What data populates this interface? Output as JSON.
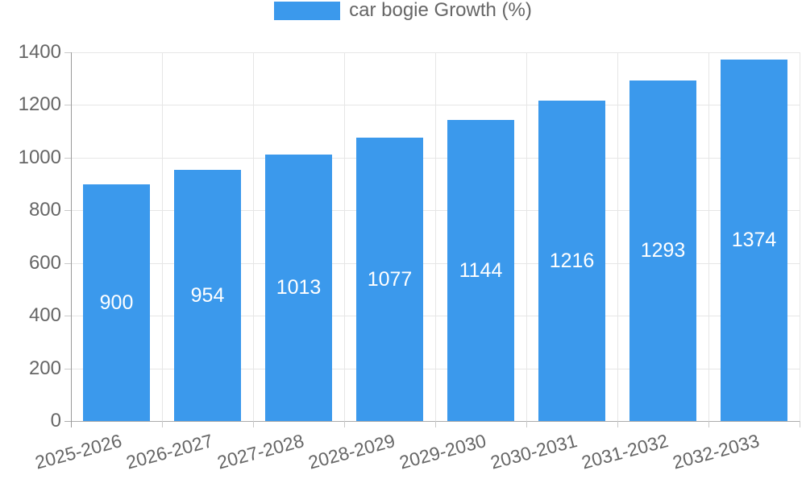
{
  "chart_data": {
    "type": "bar",
    "title": "",
    "legend": {
      "label": "car bogie Growth (%)",
      "position": "top"
    },
    "categories": [
      "2025-2026",
      "2026-2027",
      "2027-2028",
      "2028-2029",
      "2029-2030",
      "2030-2031",
      "2031-2032",
      "2032-2033"
    ],
    "series": [
      {
        "name": "car bogie Growth (%)",
        "values": [
          900,
          954,
          1013,
          1077,
          1144,
          1216,
          1293,
          1374
        ]
      }
    ],
    "bar_value_labels": [
      "900",
      "954",
      "1013",
      "1077",
      "1144",
      "1216",
      "1293",
      "1374"
    ],
    "xlabel": "",
    "ylabel": "",
    "ylim": [
      0,
      1400
    ],
    "y_ticks": [
      "0",
      "200",
      "400",
      "600",
      "800",
      "1000",
      "1200",
      "1400"
    ],
    "grid": "on",
    "x_label_rotation_deg": -15,
    "colors": {
      "bar_fill": "#3B99EC",
      "grid_line": "#E6E6E6",
      "axis_line": "#9A9A9A",
      "baseline": "#ABABAB",
      "tick_mark": "#C9C9C9",
      "axis_text": "#666666",
      "bar_label_text": "#FFFFFF",
      "background": "#FFFFFF"
    }
  }
}
